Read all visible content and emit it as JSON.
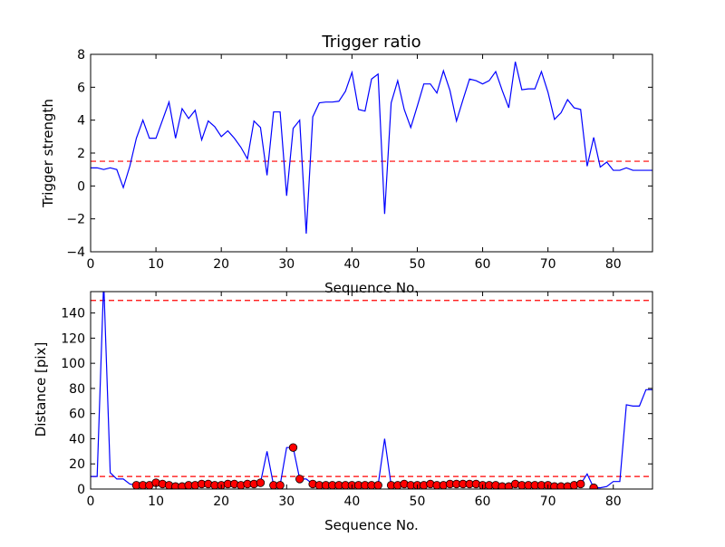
{
  "chart_data": [
    {
      "type": "line",
      "title": "Trigger ratio",
      "xlabel": "Sequence No.",
      "ylabel": "Trigger strength",
      "xlim": [
        0,
        86
      ],
      "ylim": [
        -4,
        8
      ],
      "xticks": [
        0,
        10,
        20,
        30,
        40,
        50,
        60,
        70,
        80
      ],
      "yticks": [
        -4,
        -2,
        0,
        2,
        4,
        6,
        8
      ],
      "ytick_labels": [
        "−4",
        "−2",
        "0",
        "2",
        "4",
        "6",
        "8"
      ],
      "grid": false,
      "series": [
        {
          "color": "#0000ff",
          "x": [
            0,
            1,
            2,
            3,
            4,
            5,
            6,
            7,
            8,
            9,
            10,
            11,
            12,
            13,
            14,
            15,
            16,
            17,
            18,
            19,
            20,
            21,
            22,
            23,
            24,
            25,
            26,
            27,
            28,
            29,
            30,
            31,
            32,
            33,
            34,
            35,
            36,
            37,
            38,
            39,
            40,
            41,
            42,
            43,
            44,
            45,
            46,
            47,
            48,
            49,
            50,
            51,
            52,
            53,
            54,
            55,
            56,
            57,
            58,
            59,
            60,
            61,
            62,
            63,
            64,
            65,
            66,
            67,
            68,
            69,
            70,
            71,
            72,
            73,
            74,
            75,
            76,
            77,
            78,
            79,
            80,
            81,
            82,
            83,
            84,
            85,
            86
          ],
          "y": [
            1.1,
            1.1,
            1.0,
            1.1,
            1.0,
            -0.1,
            1.2,
            2.9,
            4.0,
            2.9,
            2.9,
            4.0,
            5.1,
            2.9,
            4.7,
            4.1,
            4.6,
            2.8,
            3.95,
            3.6,
            3.0,
            3.35,
            2.9,
            2.35,
            1.65,
            3.95,
            3.55,
            0.65,
            4.5,
            4.5,
            -0.6,
            3.5,
            4.0,
            -2.9,
            4.2,
            5.05,
            5.1,
            5.1,
            5.15,
            5.75,
            6.9,
            4.65,
            4.55,
            6.5,
            6.8,
            -1.7,
            5.05,
            6.4,
            4.65,
            3.55,
            4.85,
            6.2,
            6.2,
            5.65,
            7.0,
            5.8,
            3.95,
            5.25,
            6.5,
            6.4,
            6.2,
            6.4,
            6.95,
            5.8,
            4.75,
            7.55,
            5.85,
            5.9,
            5.9,
            6.95,
            5.7,
            4.05,
            4.45,
            5.25,
            4.75,
            4.65,
            1.2,
            2.95,
            1.15,
            1.45,
            0.95,
            0.95,
            1.1,
            0.95,
            0.95,
            0.95,
            0.95
          ]
        }
      ],
      "reference_lines": [
        {
          "y": 1.5,
          "color": "#ff0000",
          "style": "dashed"
        }
      ]
    },
    {
      "type": "line",
      "title": "",
      "xlabel": "Sequence No.",
      "ylabel": "Distance [pix]",
      "xlim": [
        0,
        86
      ],
      "ylim": [
        0,
        157
      ],
      "xticks": [
        0,
        10,
        20,
        30,
        40,
        50,
        60,
        70,
        80
      ],
      "yticks": [
        0,
        20,
        40,
        60,
        80,
        100,
        120,
        140
      ],
      "grid": false,
      "series": [
        {
          "color": "#0000ff",
          "x": [
            0,
            1,
            2,
            3,
            4,
            5,
            6,
            7,
            8,
            9,
            10,
            11,
            12,
            13,
            14,
            15,
            16,
            17,
            18,
            19,
            20,
            21,
            22,
            23,
            24,
            25,
            26,
            27,
            28,
            29,
            30,
            31,
            32,
            33,
            34,
            35,
            36,
            37,
            38,
            39,
            40,
            41,
            42,
            43,
            44,
            45,
            46,
            47,
            48,
            49,
            50,
            51,
            52,
            53,
            54,
            55,
            56,
            57,
            58,
            59,
            60,
            61,
            62,
            63,
            64,
            65,
            66,
            67,
            68,
            69,
            70,
            71,
            72,
            73,
            74,
            75,
            76,
            77,
            78,
            79,
            80,
            81,
            82,
            83,
            84,
            85,
            86
          ],
          "y": [
            10,
            10,
            165,
            13,
            8,
            8,
            4,
            3,
            3,
            3,
            5,
            4,
            3,
            2,
            2,
            3,
            3,
            4,
            4,
            3,
            3,
            4,
            4,
            3,
            4,
            4,
            5,
            30,
            3,
            3,
            33,
            33,
            8,
            8,
            4,
            3,
            3,
            3,
            3,
            3,
            3,
            3,
            3,
            3,
            3,
            40,
            3,
            3,
            4,
            3,
            3,
            3,
            4,
            3,
            3,
            4,
            4,
            4,
            4,
            4,
            3,
            3,
            3,
            2,
            2,
            4,
            3,
            3,
            3,
            3,
            3,
            2,
            2,
            2,
            3,
            4,
            12,
            1,
            1,
            2,
            6,
            6,
            67,
            66,
            66,
            79,
            79
          ]
        },
        {
          "color": "#ff0000",
          "marker": "circle",
          "x": [
            7,
            8,
            9,
            10,
            11,
            12,
            13,
            14,
            15,
            16,
            17,
            18,
            19,
            20,
            21,
            22,
            23,
            24,
            25,
            26,
            28,
            29,
            31,
            32,
            34,
            35,
            36,
            37,
            38,
            39,
            40,
            41,
            42,
            43,
            44,
            46,
            47,
            48,
            49,
            50,
            51,
            52,
            53,
            54,
            55,
            56,
            57,
            58,
            59,
            60,
            61,
            62,
            63,
            64,
            65,
            66,
            67,
            68,
            69,
            70,
            71,
            72,
            73,
            74,
            75,
            77
          ],
          "y": [
            3,
            3,
            3,
            5,
            4,
            3,
            2,
            2,
            3,
            3,
            4,
            4,
            3,
            3,
            4,
            4,
            3,
            4,
            4,
            5,
            3,
            3,
            33,
            8,
            4,
            3,
            3,
            3,
            3,
            3,
            3,
            3,
            3,
            3,
            3,
            3,
            3,
            4,
            3,
            3,
            3,
            4,
            3,
            3,
            4,
            4,
            4,
            4,
            4,
            3,
            3,
            3,
            2,
            2,
            4,
            3,
            3,
            3,
            3,
            3,
            2,
            2,
            2,
            3,
            4,
            1
          ]
        }
      ],
      "reference_lines": [
        {
          "y": 150,
          "color": "#ff0000",
          "style": "dashed"
        },
        {
          "y": 10,
          "color": "#ff0000",
          "style": "dashed"
        }
      ]
    }
  ]
}
